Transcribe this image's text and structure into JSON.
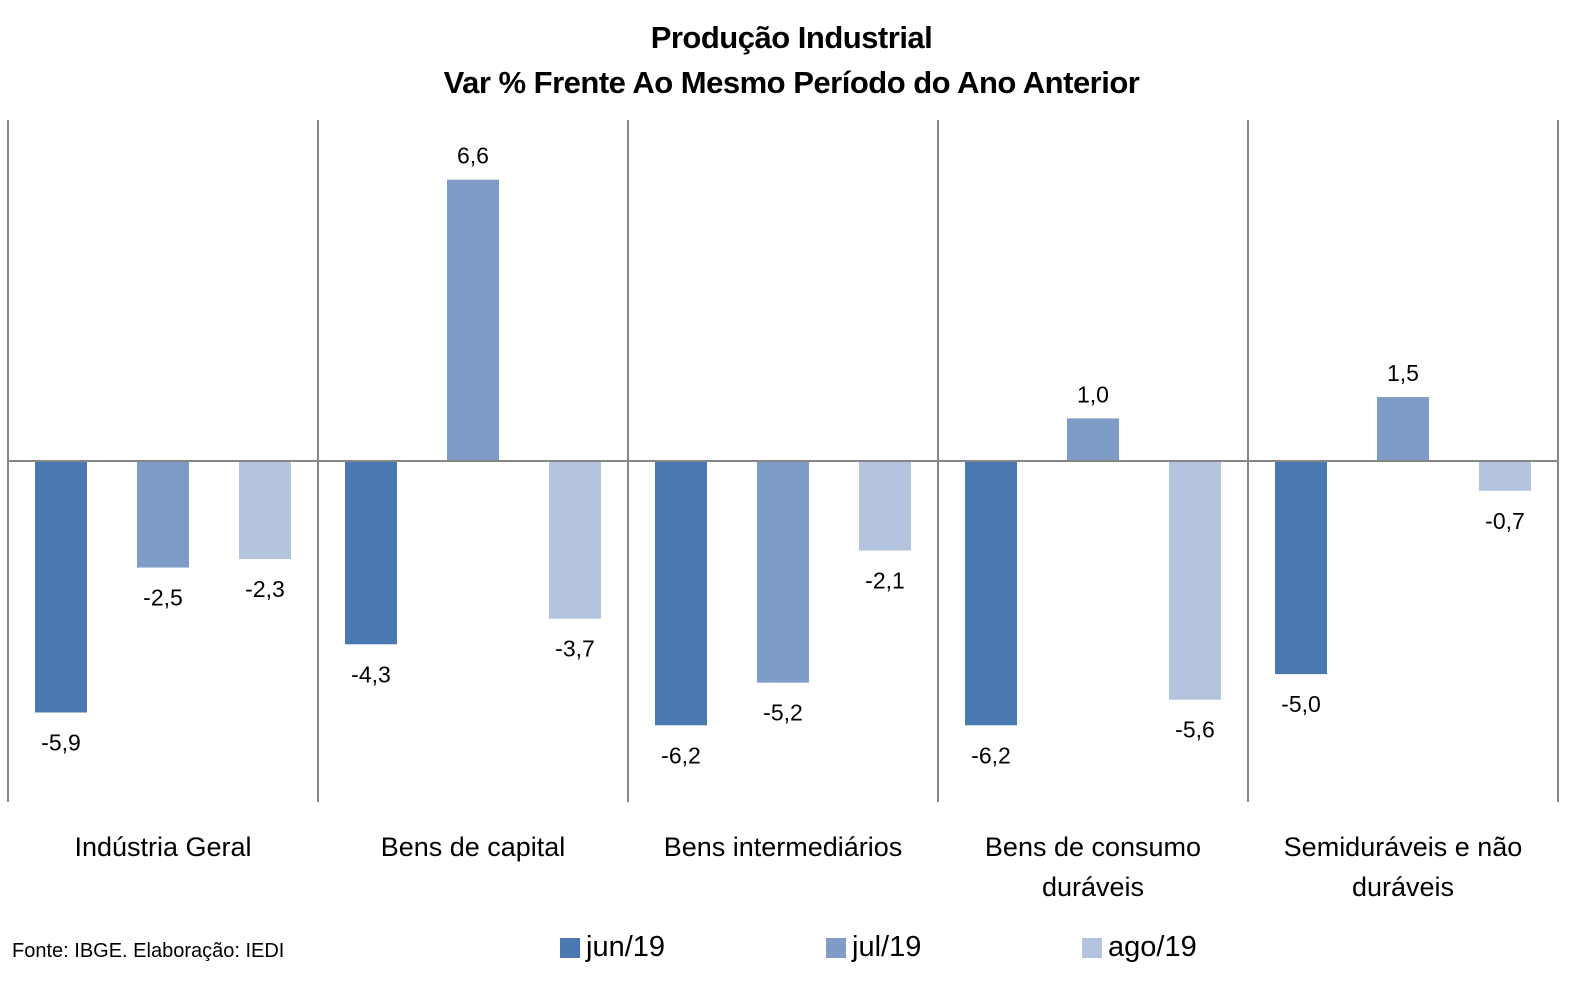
{
  "chart_data": {
    "type": "bar",
    "title": "Produção Industrial",
    "subtitle": "Var % Frente Ao Mesmo Período do Ano Anterior",
    "categories": [
      "Indústria Geral",
      "Bens de capital",
      "Bens intermediários",
      "Bens de consumo duráveis",
      "Semiduráveis e não duráveis"
    ],
    "category_lines": [
      [
        "Indústria Geral"
      ],
      [
        "Bens de capital"
      ],
      [
        "Bens intermediários"
      ],
      [
        "Bens de consumo",
        "duráveis"
      ],
      [
        "Semiduráveis e não",
        "duráveis"
      ]
    ],
    "series": [
      {
        "name": "jun/19",
        "color": "#4a78b0",
        "values": [
          -5.9,
          -4.3,
          -6.2,
          -6.2,
          -5.0
        ],
        "labels": [
          "-5,9",
          "-4,3",
          "-6,2",
          "-6,2",
          "-5,0"
        ]
      },
      {
        "name": "jul/19",
        "color": "#7f9cc7",
        "values": [
          -2.5,
          6.6,
          -5.2,
          1.0,
          1.5
        ],
        "labels": [
          "-2,5",
          "6,6",
          "-5,2",
          "1,0",
          "1,5"
        ]
      },
      {
        "name": "ago/19",
        "color": "#b4c3de",
        "values": [
          -2.3,
          -3.7,
          -2.1,
          -5.6,
          -0.7
        ],
        "labels": [
          "-2,3",
          "-3,7",
          "-2,1",
          "-5,6",
          "-0,7"
        ]
      }
    ],
    "ylim": [
      -8,
      8
    ],
    "xlabel": "",
    "ylabel": "",
    "grid": false,
    "legend": "bottom",
    "source": "Fonte: IBGE. Elaboração: IEDI"
  }
}
